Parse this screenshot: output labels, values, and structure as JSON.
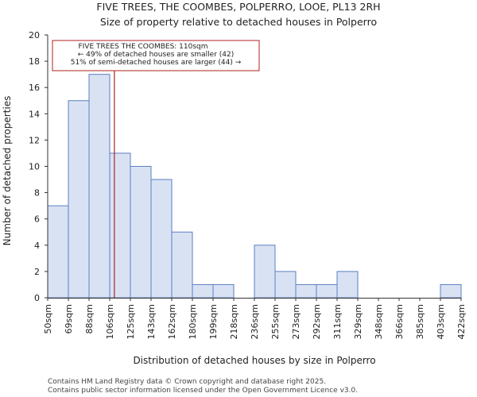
{
  "chart_data": {
    "type": "bar",
    "title": "FIVE TREES, THE COOMBES, POLPERRO, LOOE, PL13 2RH",
    "subtitle": "Size of property relative to detached houses in Polperro",
    "xlabel": "Distribution of detached houses by size in Polperro",
    "ylabel": "Number of detached properties",
    "ylim": [
      0,
      20
    ],
    "yticks": [
      0,
      2,
      4,
      6,
      8,
      10,
      12,
      14,
      16,
      18,
      20
    ],
    "bin_edges_labels": [
      "50sqm",
      "69sqm",
      "88sqm",
      "106sqm",
      "125sqm",
      "143sqm",
      "162sqm",
      "180sqm",
      "199sqm",
      "218sqm",
      "236sqm",
      "255sqm",
      "273sqm",
      "292sqm",
      "311sqm",
      "329sqm",
      "348sqm",
      "366sqm",
      "385sqm",
      "403sqm",
      "422sqm"
    ],
    "values": [
      7,
      15,
      17,
      11,
      10,
      9,
      5,
      1,
      1,
      0,
      4,
      2,
      1,
      1,
      2,
      0,
      0,
      0,
      0,
      1
    ],
    "marker_value_sqm": 110,
    "bin_start_sqm": 50,
    "bin_width_sqm": 18.6,
    "annotation": {
      "line1": "FIVE TREES THE COOMBES: 110sqm",
      "line2": "← 49% of detached houses are smaller (42)",
      "line3": "51% of semi-detached houses are larger (44) →"
    },
    "colors": {
      "bar_fill": "#d9e2f3",
      "bar_edge": "#5b7fc4",
      "marker": "#b22222"
    }
  },
  "footer": {
    "line1": "Contains HM Land Registry data © Crown copyright and database right 2025.",
    "line2": "Contains public sector information licensed under the Open Government Licence v3.0."
  }
}
